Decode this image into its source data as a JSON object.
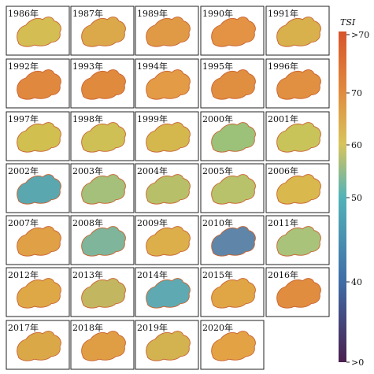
{
  "panels": [
    {
      "label": "1986年",
      "color": "#d4bd52"
    },
    {
      "label": "1987年",
      "color": "#dba94a"
    },
    {
      "label": "1989年",
      "color": "#e09a45"
    },
    {
      "label": "1990年",
      "color": "#e39343"
    },
    {
      "label": "1991年",
      "color": "#d8b04c"
    },
    {
      "label": "1992年",
      "color": "#e0893e"
    },
    {
      "label": "1993年",
      "color": "#e08a3e"
    },
    {
      "label": "1994年",
      "color": "#e39b45"
    },
    {
      "label": "1995年",
      "color": "#e08f40"
    },
    {
      "label": "1996年",
      "color": "#e09040"
    },
    {
      "label": "1997年",
      "color": "#d1bf50"
    },
    {
      "label": "1998年",
      "color": "#cfc055"
    },
    {
      "label": "1999年",
      "color": "#d4b84e"
    },
    {
      "label": "2000年",
      "color": "#9cc27a"
    },
    {
      "label": "2001年",
      "color": "#c9c45a"
    },
    {
      "label": "2002年",
      "color": "#5aa7b0"
    },
    {
      "label": "2003年",
      "color": "#a4c07a"
    },
    {
      "label": "2004年",
      "color": "#b7c068"
    },
    {
      "label": "2005年",
      "color": "#b8c26a"
    },
    {
      "label": "2006年",
      "color": "#d9b84d"
    },
    {
      "label": "2007年",
      "color": "#e0a045"
    },
    {
      "label": "2008年",
      "color": "#7fb59a"
    },
    {
      "label": "2009年",
      "color": "#dcaf4a"
    },
    {
      "label": "2010年",
      "color": "#5f86a8"
    },
    {
      "label": "2011年",
      "color": "#a9c37a"
    },
    {
      "label": "2012年",
      "color": "#dea846"
    },
    {
      "label": "2013年",
      "color": "#c3b660"
    },
    {
      "label": "2014年",
      "color": "#5faab2"
    },
    {
      "label": "2015年",
      "color": "#e0a645"
    },
    {
      "label": "2016年",
      "color": "#e08d3f"
    },
    {
      "label": "2017年",
      "color": "#dba848"
    },
    {
      "label": "2018年",
      "color": "#e09e44"
    },
    {
      "label": "2019年",
      "color": "#d3b250"
    },
    {
      "label": "2020年",
      "color": "#e3a244"
    }
  ],
  "colorbar": {
    "title": "TSI",
    "tick_labels": [
      ">70",
      "70",
      "60",
      "50",
      "40",
      ">0"
    ]
  }
}
